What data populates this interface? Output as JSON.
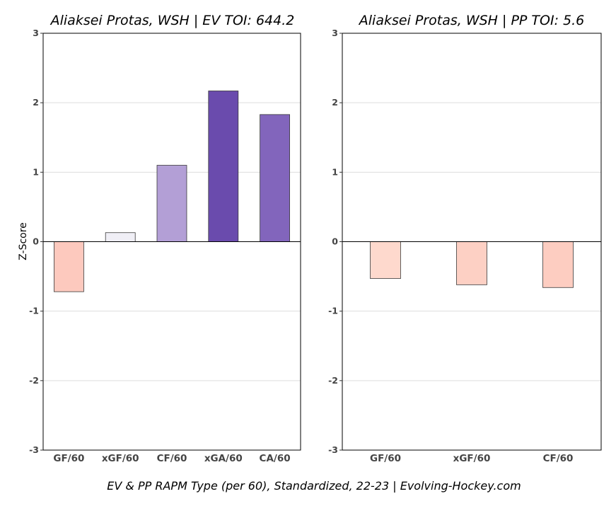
{
  "caption": "EV & PP RAPM Type (per 60), Standardized, 22-23    |    Evolving-Hockey.com",
  "chart_data": [
    {
      "type": "bar",
      "title": "Aliaksei Protas, WSH  |  EV TOI: 644.2",
      "ylabel": "Z-Score",
      "ylim": [
        -3,
        3
      ],
      "yticks": [
        "-3",
        "-2",
        "-1",
        "0",
        "1",
        "2",
        "3"
      ],
      "grid": true,
      "categories": [
        "GF/60",
        "xGF/60",
        "CF/60",
        "xGA/60",
        "CA/60"
      ],
      "values": [
        -0.72,
        0.13,
        1.1,
        2.17,
        1.83
      ],
      "colors": [
        "#fdc9be",
        "#f0eff6",
        "#b39fd6",
        "#6a4bad",
        "#8265bc"
      ]
    },
    {
      "type": "bar",
      "title": "Aliaksei Protas, WSH  |  PP TOI: 5.6",
      "ylabel": "",
      "ylim": [
        -3,
        3
      ],
      "yticks": [
        "-3",
        "-2",
        "-1",
        "0",
        "1",
        "2",
        "3"
      ],
      "grid": true,
      "categories": [
        "GF/60",
        "xGF/60",
        "CF/60"
      ],
      "values": [
        -0.53,
        -0.62,
        -0.66
      ],
      "colors": [
        "#fed9cd",
        "#fdd0c4",
        "#fdcdc1"
      ]
    }
  ]
}
